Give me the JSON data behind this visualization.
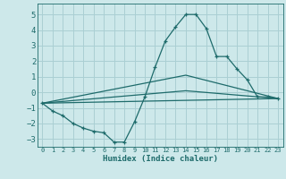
{
  "xlabel": "Humidex (Indice chaleur)",
  "ylabel": "",
  "xlim": [
    -0.5,
    23.5
  ],
  "ylim": [
    -3.5,
    5.7
  ],
  "xticks": [
    0,
    1,
    2,
    3,
    4,
    5,
    6,
    7,
    8,
    9,
    10,
    11,
    12,
    13,
    14,
    15,
    16,
    17,
    18,
    19,
    20,
    21,
    22,
    23
  ],
  "yticks": [
    -3,
    -2,
    -1,
    0,
    1,
    2,
    3,
    4,
    5
  ],
  "bg_color": "#cde8ea",
  "grid_color": "#aacfd3",
  "line_color": "#1e6b6b",
  "line1": {
    "x": [
      0,
      1,
      2,
      3,
      4,
      5,
      6,
      7,
      8,
      9,
      10,
      11,
      12,
      13,
      14,
      15,
      16,
      17,
      18,
      19,
      20,
      21,
      22,
      23
    ],
    "y": [
      -0.7,
      -1.2,
      -1.5,
      -2.0,
      -2.3,
      -2.5,
      -2.6,
      -3.2,
      -3.2,
      -1.9,
      -0.3,
      1.6,
      3.3,
      4.2,
      5.0,
      5.0,
      4.1,
      2.3,
      2.3,
      1.5,
      0.8,
      -0.3,
      -0.3,
      -0.4
    ]
  },
  "line2": {
    "x": [
      0,
      23
    ],
    "y": [
      -0.7,
      -0.4
    ]
  },
  "line3": {
    "x": [
      0,
      14,
      23
    ],
    "y": [
      -0.7,
      0.1,
      -0.4
    ]
  },
  "line4": {
    "x": [
      0,
      14,
      23
    ],
    "y": [
      -0.7,
      1.1,
      -0.4
    ]
  }
}
